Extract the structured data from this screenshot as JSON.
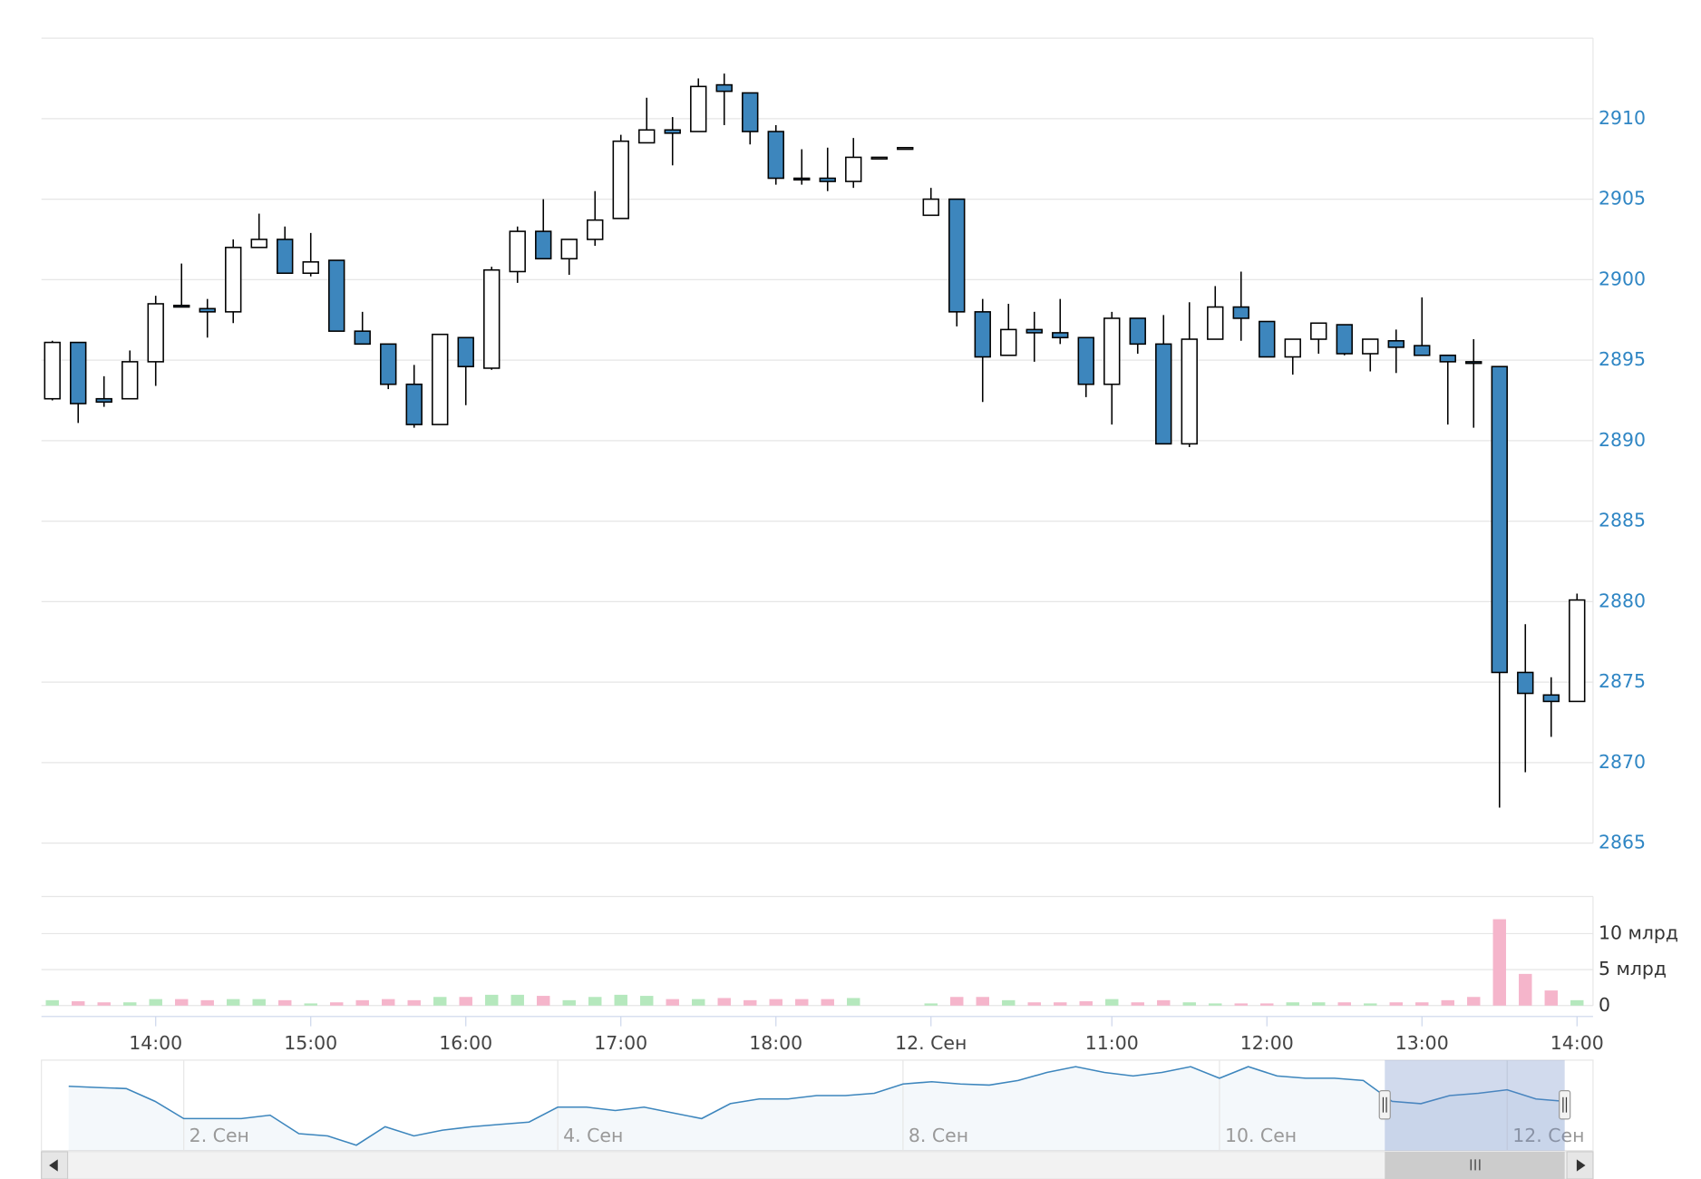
{
  "chart_data": [
    {
      "type": "candlestick",
      "categories": [
        null,
        null,
        null,
        null,
        "14:00",
        null,
        null,
        null,
        null,
        null,
        "15:00",
        null,
        null,
        null,
        null,
        null,
        "16:00",
        null,
        null,
        null,
        null,
        null,
        "17:00",
        null,
        null,
        null,
        null,
        null,
        "18:00",
        null,
        null,
        null,
        null,
        null,
        "12. Сен",
        null,
        null,
        null,
        null,
        null,
        null,
        "11:00",
        null,
        null,
        null,
        null,
        null,
        "12:00",
        null,
        null,
        null,
        null,
        null,
        "13:00",
        null,
        null,
        null,
        null,
        null,
        "14:00"
      ],
      "open": [
        2892.6,
        2896.1,
        2892.6,
        2892.6,
        2894.9,
        2898.4,
        2898.2,
        2898.0,
        2902.0,
        2902.5,
        2900.4,
        2901.2,
        2896.8,
        2896.0,
        2893.5,
        2891.0,
        2896.4,
        2894.5,
        2900.5,
        2903.0,
        2901.3,
        2902.5,
        2903.8,
        2908.5,
        2909.3,
        2909.2,
        2912.1,
        2911.6,
        2909.2,
        2906.3,
        2906.3,
        2906.1,
        2907.5,
        2908.1,
        2904.0,
        2905.0,
        2898.0,
        2895.3,
        2896.9,
        2896.7,
        2896.4,
        2893.5,
        2897.6,
        2896.0,
        2889.8,
        2896.3,
        2898.3,
        2897.4,
        2895.2,
        2896.3,
        2897.2,
        2895.4,
        2896.2,
        2895.9,
        2895.3,
        2894.9,
        2894.6,
        2875.6,
        2874.2,
        2873.8
      ],
      "high": [
        2896.2,
        2896.1,
        2894.0,
        2895.6,
        2899.0,
        2901.0,
        2898.8,
        2902.5,
        2904.1,
        2903.3,
        2902.9,
        2901.2,
        2898.0,
        2896.0,
        2894.7,
        2896.6,
        2896.4,
        2900.8,
        2903.3,
        2905.0,
        2902.5,
        2905.5,
        2909.0,
        2911.3,
        2910.1,
        2912.5,
        2912.8,
        2911.6,
        2909.6,
        2908.1,
        2908.2,
        2908.8,
        2907.6,
        2908.2,
        2905.7,
        2905.0,
        2898.8,
        2898.5,
        2898.0,
        2898.8,
        2896.4,
        2898.0,
        2897.6,
        2897.8,
        2898.6,
        2899.6,
        2900.5,
        2897.4,
        2896.3,
        2897.3,
        2897.2,
        2896.3,
        2896.9,
        2898.9,
        2895.3,
        2896.3,
        2894.6,
        2878.6,
        2875.3,
        2880.5
      ],
      "low": [
        2892.5,
        2891.1,
        2892.1,
        2892.6,
        2893.4,
        2898.3,
        2896.4,
        2897.3,
        2902.0,
        2900.4,
        2900.2,
        2896.8,
        2896.0,
        2893.2,
        2890.8,
        2891.0,
        2892.2,
        2894.4,
        2899.8,
        2901.3,
        2900.3,
        2902.1,
        2903.8,
        2908.5,
        2907.1,
        2909.2,
        2909.6,
        2908.4,
        2905.9,
        2905.9,
        2905.5,
        2905.7,
        2907.5,
        2908.1,
        2904.0,
        2897.1,
        2892.4,
        2895.3,
        2894.9,
        2896.0,
        2892.7,
        2891.0,
        2895.4,
        2889.8,
        2889.6,
        2896.3,
        2896.2,
        2895.2,
        2894.1,
        2895.4,
        2895.3,
        2894.3,
        2894.2,
        2895.3,
        2891.0,
        2890.8,
        2867.2,
        2869.4,
        2871.6,
        2873.8
      ],
      "close": [
        2896.1,
        2892.3,
        2892.4,
        2894.9,
        2898.5,
        2898.3,
        2898.0,
        2902.0,
        2902.5,
        2900.4,
        2901.1,
        2896.8,
        2896.0,
        2893.5,
        2891.0,
        2896.6,
        2894.6,
        2900.6,
        2903.0,
        2901.3,
        2902.5,
        2903.7,
        2908.6,
        2909.3,
        2909.1,
        2912.0,
        2911.7,
        2909.2,
        2906.3,
        2906.2,
        2906.1,
        2907.6,
        2907.6,
        2908.2,
        2905.0,
        2898.0,
        2895.2,
        2896.9,
        2896.7,
        2896.4,
        2893.5,
        2897.6,
        2896.0,
        2889.8,
        2896.3,
        2898.3,
        2897.6,
        2895.2,
        2896.3,
        2897.3,
        2895.4,
        2896.3,
        2895.8,
        2895.3,
        2894.9,
        2894.8,
        2875.6,
        2874.3,
        2873.8,
        2880.1
      ],
      "up_color": "#ffffff",
      "down_color": "#3d86bd",
      "ylim": [
        2865,
        2915
      ],
      "yticks": [
        2865,
        2870,
        2875,
        2880,
        2885,
        2890,
        2895,
        2900,
        2905,
        2910
      ],
      "grid": true
    },
    {
      "type": "bar",
      "values": [
        750000000,
        600000000,
        450000000,
        450000000,
        900000000,
        900000000,
        750000000,
        900000000,
        900000000,
        750000000,
        300000000,
        450000000,
        750000000,
        900000000,
        750000000,
        1200000000,
        1200000000,
        1500000000,
        1500000000,
        1350000000,
        750000000,
        1200000000,
        1500000000,
        1350000000,
        900000000,
        900000000,
        1050000000,
        750000000,
        900000000,
        900000000,
        900000000,
        1050000000,
        0,
        0,
        300000000,
        1200000000,
        1200000000,
        750000000,
        450000000,
        450000000,
        600000000,
        900000000,
        450000000,
        750000000,
        450000000,
        300000000,
        300000000,
        300000000,
        450000000,
        450000000,
        450000000,
        300000000,
        450000000,
        450000000,
        750000000,
        1200000000,
        12000000000,
        4400000000,
        2100000000,
        750000000
      ],
      "up_color": "#b5e8bd",
      "down_color": "#f5b5cb",
      "ylim": [
        0,
        15000000000
      ],
      "yticks": [
        0,
        {
          "value": 5000000000,
          "label": "5 млрд"
        },
        {
          "value": 10000000000,
          "label": "10 млрд"
        }
      ],
      "grid": true
    },
    {
      "type": "line",
      "categories": [
        null,
        null,
        null,
        null,
        "2. Сен",
        null,
        null,
        null,
        null,
        null,
        null,
        null,
        null,
        null,
        null,
        null,
        null,
        "4. Сен",
        null,
        null,
        null,
        null,
        null,
        null,
        null,
        null,
        null,
        null,
        null,
        "8. Сен",
        null,
        null,
        null,
        null,
        null,
        null,
        null,
        null,
        null,
        null,
        "10. Сен",
        null,
        null,
        null,
        null,
        null,
        null,
        null,
        null,
        null,
        "12. Сен",
        null,
        null
      ],
      "values": [
        2912.9,
        2912.0,
        2911.1,
        2901.2,
        2887.7,
        2887.7,
        2887.7,
        2890.4,
        2876.0,
        2874.2,
        2867.0,
        2881.4,
        2874.2,
        2878.7,
        2881.4,
        2883.2,
        2885.0,
        2896.7,
        2896.7,
        2894.0,
        2896.7,
        2892.2,
        2887.7,
        2899.4,
        2903.0,
        2903.0,
        2905.7,
        2905.7,
        2907.5,
        2914.7,
        2916.5,
        2914.7,
        2913.8,
        2917.4,
        2923.7,
        2928.2,
        2923.7,
        2921.0,
        2923.7,
        2928.2,
        2919.2,
        2928.2,
        2921.0,
        2919.2,
        2919.2,
        2917.4,
        2901.2,
        2899.4,
        2905.7,
        2907.5,
        2910.2,
        2903.0,
        2901.2
      ],
      "color": "#3d86bd"
    }
  ]
}
